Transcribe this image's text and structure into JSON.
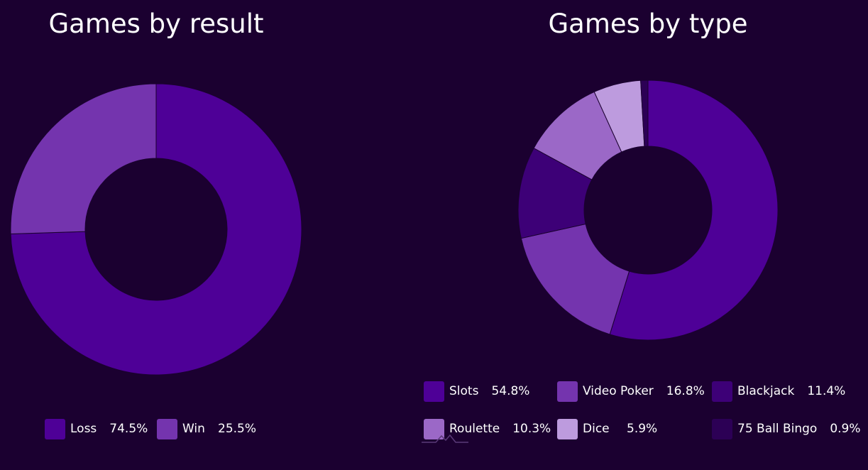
{
  "colors": {
    "background": "#1b0030"
  },
  "chart_data": [
    {
      "type": "pie",
      "title": "Games by result",
      "donut": true,
      "legend_position": "bottom",
      "slices": [
        {
          "label": "Loss",
          "value": 74.5,
          "display": "74.5%",
          "color": "#4e0097"
        },
        {
          "label": "Win",
          "value": 25.5,
          "display": "25.5%",
          "color": "#7434ae"
        }
      ]
    },
    {
      "type": "pie",
      "title": "Games by type",
      "donut": true,
      "legend_position": "bottom",
      "slices": [
        {
          "label": "Slots",
          "value": 54.8,
          "display": "54.8%",
          "color": "#4e0097"
        },
        {
          "label": "Video Poker",
          "value": 16.8,
          "display": "16.8%",
          "color": "#7434ae"
        },
        {
          "label": "Blackjack",
          "value": 11.4,
          "display": "11.4%",
          "color": "#3d0077"
        },
        {
          "label": "Roulette",
          "value": 10.3,
          "display": "10.3%",
          "color": "#9b68c7"
        },
        {
          "label": "Dice",
          "value": 5.9,
          "display": "5.9%",
          "color": "#bd9bde"
        },
        {
          "label": "75 Ball Bingo",
          "value": 0.9,
          "display": "0.9%",
          "color": "#2c0055"
        }
      ]
    }
  ]
}
